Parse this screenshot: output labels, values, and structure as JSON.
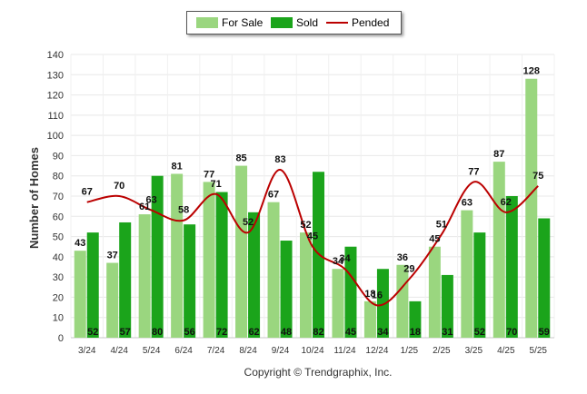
{
  "chart_data": {
    "type": "bar",
    "title": "",
    "ylabel": "Number of Homes",
    "xlabel": "",
    "ylim": [
      0,
      140
    ],
    "y_ticks": [
      0,
      10,
      20,
      30,
      40,
      50,
      60,
      70,
      80,
      90,
      100,
      110,
      120,
      130,
      140
    ],
    "grid": true,
    "legend_position": "top-center",
    "categories": [
      "3/24",
      "4/24",
      "5/24",
      "6/24",
      "7/24",
      "8/24",
      "9/24",
      "10/24",
      "11/24",
      "12/24",
      "1/25",
      "2/25",
      "3/25",
      "4/25",
      "5/25"
    ],
    "series": [
      {
        "name": "For Sale",
        "type": "bar",
        "color": "#9ad67f",
        "values": [
          43,
          37,
          61,
          81,
          77,
          85,
          67,
          52,
          34,
          18,
          36,
          45,
          63,
          87,
          128
        ]
      },
      {
        "name": "Sold",
        "type": "bar",
        "color": "#1ba41b",
        "values": [
          52,
          57,
          80,
          56,
          72,
          62,
          48,
          82,
          45,
          34,
          18,
          31,
          52,
          70,
          59
        ]
      },
      {
        "name": "Pended",
        "type": "line",
        "color": "#bb0000",
        "values": [
          67,
          70,
          63,
          58,
          71,
          52,
          83,
          45,
          34,
          16,
          29,
          51,
          77,
          62,
          75
        ]
      }
    ]
  },
  "copyright": "Copyright © Trendgraphix, Inc."
}
